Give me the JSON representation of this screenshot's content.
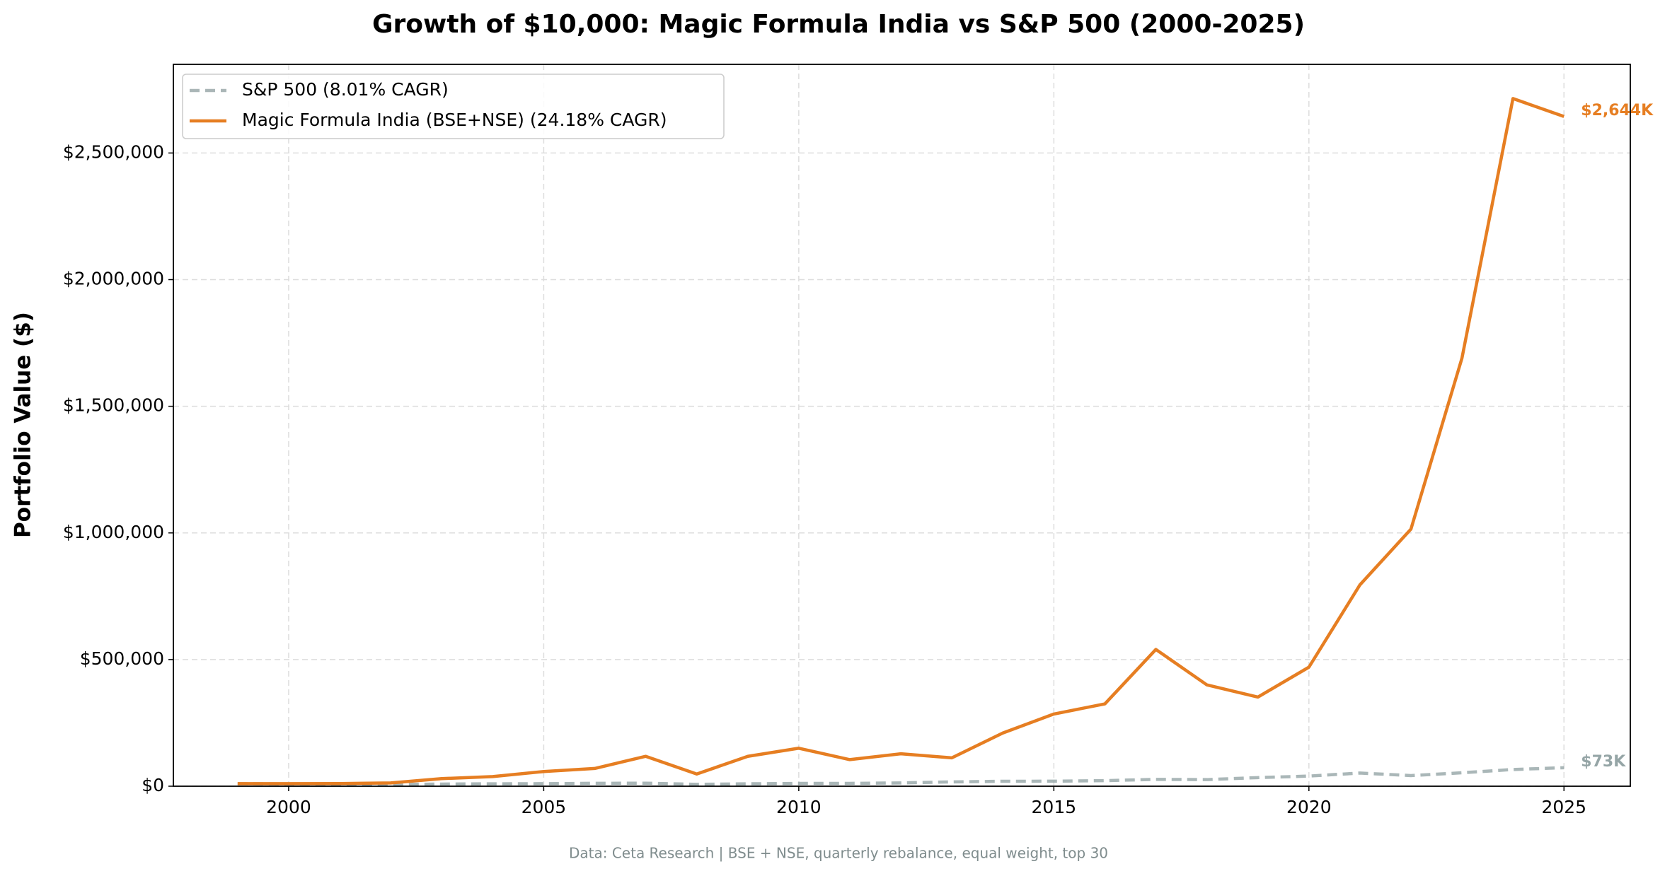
{
  "chart_data": {
    "type": "line",
    "title": "Growth of $10,000: Magic Formula India vs S&P 500 (2000-2025)",
    "y_label": "Portfolio Value ($)",
    "footnote": "Data: Ceta Research | BSE + NSE, quarterly rebalance, equal weight, top 30",
    "x": [
      1999,
      2000,
      2001,
      2002,
      2003,
      2004,
      2005,
      2006,
      2007,
      2008,
      2009,
      2010,
      2011,
      2012,
      2013,
      2014,
      2015,
      2016,
      2017,
      2018,
      2019,
      2020,
      2021,
      2022,
      2023,
      2024,
      2025
    ],
    "series": [
      {
        "name": "S&P 500 (8.01% CAGR)",
        "color": "#95a5a6",
        "dashed": true,
        "values": [
          10000,
          9000,
          8000,
          6500,
          8500,
          9500,
          10000,
          11500,
          12000,
          7500,
          9500,
          11000,
          11200,
          13000,
          17000,
          19500,
          19800,
          22000,
          27000,
          26000,
          34000,
          40000,
          52000,
          42000,
          53000,
          66000,
          73000
        ],
        "value_labels": [
          null,
          null,
          null,
          null,
          null,
          null,
          null,
          null,
          null,
          null,
          null,
          null,
          null,
          null,
          null,
          null,
          null,
          null,
          null,
          null,
          null,
          null,
          null,
          null,
          null,
          null,
          "$73K"
        ]
      },
      {
        "name": "Magic Formula India (BSE+NSE) (24.18% CAGR)",
        "color": "#e67e22",
        "dashed": false,
        "values": [
          10000,
          10000,
          10500,
          13000,
          30000,
          38000,
          58000,
          70000,
          118000,
          48000,
          118000,
          150000,
          105000,
          128000,
          112000,
          210000,
          285000,
          325000,
          540000,
          400000,
          352000,
          470000,
          795000,
          1015000,
          1690000,
          2715000,
          2644000
        ],
        "value_labels": [
          null,
          null,
          null,
          null,
          null,
          null,
          null,
          null,
          null,
          null,
          null,
          null,
          null,
          null,
          null,
          null,
          null,
          null,
          null,
          null,
          null,
          null,
          null,
          null,
          null,
          null,
          "$2,644K"
        ]
      }
    ],
    "xlim": [
      1997.74,
      2026.3
    ],
    "ylim": [
      0,
      2850000
    ],
    "xticks": [
      2000,
      2005,
      2010,
      2015,
      2020,
      2025
    ],
    "yticks": [
      {
        "value": 0,
        "label": "$0"
      },
      {
        "value": 500000,
        "label": "$500,000"
      },
      {
        "value": 1000000,
        "label": "$1,000,000"
      },
      {
        "value": 1500000,
        "label": "$1,500,000"
      },
      {
        "value": 2000000,
        "label": "$2,000,000"
      },
      {
        "value": 2500000,
        "label": "$2,500,000"
      }
    ],
    "grid": true,
    "legend": "upper-left"
  }
}
